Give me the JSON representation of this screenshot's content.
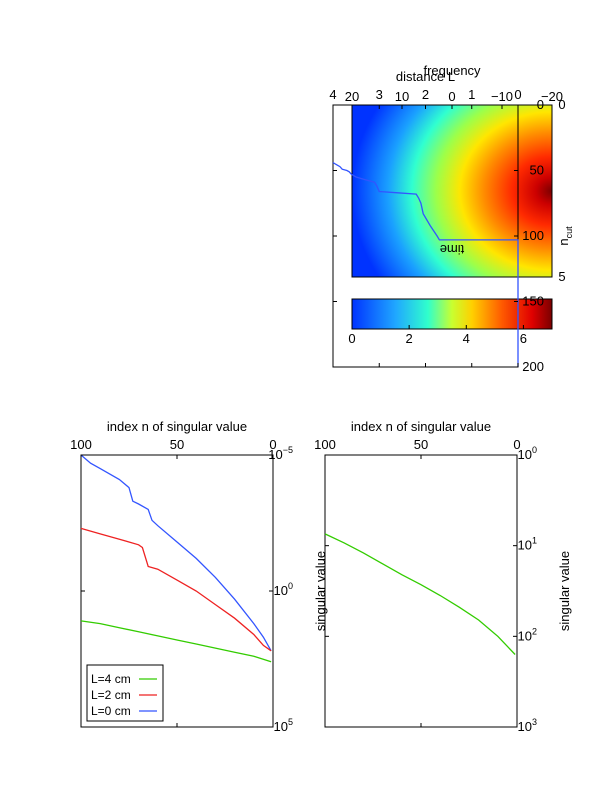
{
  "chart_data": [
    {
      "id": "heatmap",
      "type": "heatmap",
      "xlabel": "time",
      "ylabel": "frequency",
      "xlim": [
        0,
        5
      ],
      "ylim": [
        -20,
        20
      ],
      "xticks": [
        "0",
        "5"
      ],
      "yticks": [
        "−20",
        "−10",
        "0",
        "10",
        "20"
      ],
      "colorbar": {
        "range": [
          0,
          7
        ],
        "ticks": [
          "0",
          "2",
          "4",
          "6"
        ]
      }
    },
    {
      "id": "sv-top",
      "type": "line",
      "xlabel": "index n of singular value",
      "ylabel": "singular value",
      "xlim": [
        0,
        100
      ],
      "yscale": "log",
      "ylim_exp": [
        0,
        3
      ],
      "xticks": [
        "0",
        "50",
        "100"
      ],
      "yticks": [
        {
          "base": "10",
          "exp": "0"
        },
        {
          "base": "10",
          "exp": "1"
        },
        {
          "base": "10",
          "exp": "2"
        },
        {
          "base": "10",
          "exp": "3"
        }
      ],
      "series": [
        {
          "color": "#33cc00",
          "x": [
            1,
            10,
            20,
            30,
            40,
            50,
            60,
            70,
            80,
            90,
            100
          ],
          "y_exp": [
            2.2,
            2.0,
            1.82,
            1.68,
            1.55,
            1.43,
            1.32,
            1.2,
            1.08,
            0.97,
            0.87
          ]
        }
      ]
    },
    {
      "id": "ncut",
      "type": "line",
      "xlabel": "distance L",
      "ylabel": {
        "base": "n",
        "sub": "cut"
      },
      "xlim": [
        0,
        4
      ],
      "ylim": [
        0,
        200
      ],
      "xticks": [
        "0",
        "1",
        "2",
        "3",
        "4"
      ],
      "yticks": [
        "0",
        "50",
        "100",
        "150",
        "200"
      ],
      "series": [
        {
          "color": "#3355ff",
          "x": [
            0,
            0,
            1.7,
            1.75,
            1.9,
            2.05,
            2.1,
            2.15,
            2.2,
            2.6,
            3.0,
            3.05,
            3.1,
            3.2,
            3.3,
            3.4,
            3.5,
            3.6,
            3.65,
            3.7,
            3.8,
            3.85,
            3.9,
            3.95,
            4.0
          ],
          "y": [
            200,
            103,
            103,
            100,
            92,
            83,
            75,
            71,
            68,
            67,
            66,
            62,
            59,
            58,
            57,
            56,
            55,
            53,
            51,
            50,
            49,
            47,
            46,
            45,
            44
          ]
        }
      ]
    },
    {
      "id": "sv-bottom",
      "type": "line",
      "xlabel": "index n of singular value",
      "ylabel": "singular value",
      "xlim": [
        0,
        100
      ],
      "yscale": "log",
      "ylim_exp": [
        -5,
        5
      ],
      "xticks": [
        "0",
        "50",
        "100"
      ],
      "yticks": [
        {
          "base": "10",
          "exp": "−5"
        },
        {
          "base": "10",
          "exp": "0"
        },
        {
          "base": "10",
          "exp": "5"
        }
      ],
      "legend": {
        "placement": "top-right"
      },
      "series": [
        {
          "name": "L=0 cm",
          "color": "#3355ff",
          "x": [
            1,
            5,
            10,
            20,
            30,
            40,
            50,
            60,
            63,
            65,
            70,
            73,
            75,
            80,
            90,
            95,
            100
          ],
          "y_exp": [
            2.2,
            1.7,
            1.2,
            0.3,
            -0.5,
            -1.2,
            -1.8,
            -2.4,
            -2.6,
            -3.0,
            -3.2,
            -3.3,
            -3.8,
            -4.1,
            -4.5,
            -4.7,
            -5.0
          ]
        },
        {
          "name": "L=2 cm",
          "color": "#ee2222",
          "x": [
            1,
            5,
            10,
            20,
            30,
            40,
            50,
            60,
            65,
            68,
            70,
            75,
            80,
            90,
            100
          ],
          "y_exp": [
            2.2,
            2.0,
            1.6,
            1.0,
            0.5,
            0.0,
            -0.4,
            -0.8,
            -0.9,
            -1.6,
            -1.7,
            -1.8,
            -1.9,
            -2.1,
            -2.3
          ]
        },
        {
          "name": "L=4 cm",
          "color": "#33cc00",
          "x": [
            1,
            10,
            20,
            30,
            40,
            50,
            60,
            70,
            80,
            90,
            100
          ],
          "y_exp": [
            2.6,
            2.4,
            2.25,
            2.1,
            1.95,
            1.8,
            1.65,
            1.5,
            1.35,
            1.2,
            1.1
          ]
        }
      ]
    }
  ]
}
